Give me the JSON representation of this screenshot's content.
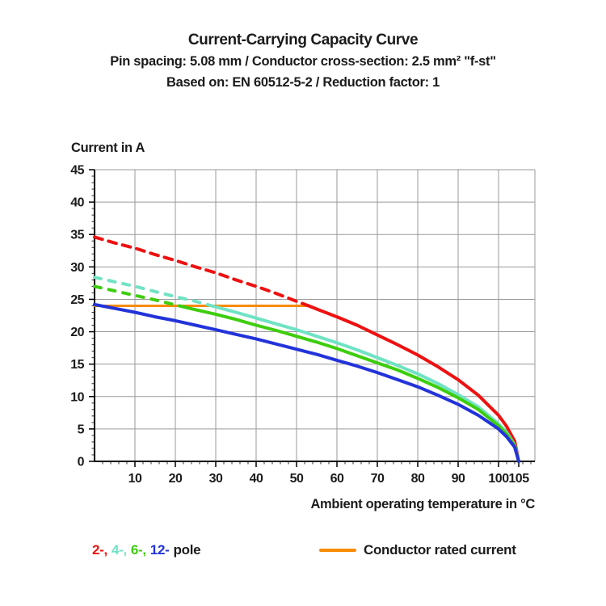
{
  "chart_data": {
    "type": "line",
    "title": "Current-Carrying Capacity Curve",
    "subtitle1": "Pin spacing: 5.08 mm / Conductor cross-section: 2.5 mm² \"f-st\"",
    "subtitle2": "Based on: EN 60512-5-2 / Reduction factor: 1",
    "ylabel": "Current in A",
    "xlabel": "Ambient operating temperature in °C",
    "xlim": [
      0,
      109
    ],
    "ylim": [
      0,
      45
    ],
    "xticks": [
      10,
      20,
      30,
      40,
      50,
      60,
      70,
      80,
      90,
      100,
      105
    ],
    "yticks": [
      0,
      5,
      10,
      15,
      20,
      25,
      30,
      35,
      40,
      45
    ],
    "grid": true,
    "grid_color": "#9a9a9a",
    "axis_color": "#000000",
    "text_color": "#1b1b1b",
    "legend_position": "bottom",
    "series": [
      {
        "name": "conductor-rated-current",
        "label": "Conductor rated current",
        "color": "#f78b00",
        "width": 3,
        "solid_points": [
          [
            0,
            24
          ],
          [
            53,
            24
          ]
        ]
      },
      {
        "name": "2-pole",
        "label": "2-",
        "color": "#ee1111",
        "width": 4,
        "dash": "10 8",
        "dashed_points": [
          [
            0,
            34.6
          ],
          [
            5,
            33.7
          ],
          [
            10,
            32.9
          ],
          [
            15,
            31.9
          ],
          [
            20,
            31.0
          ],
          [
            25,
            30.0
          ],
          [
            30,
            29.1
          ],
          [
            35,
            28.0
          ],
          [
            40,
            27.0
          ],
          [
            45,
            25.9
          ],
          [
            50,
            24.7
          ],
          [
            53,
            24.0
          ]
        ],
        "solid_points": [
          [
            53,
            24.0
          ],
          [
            55,
            23.5
          ],
          [
            60,
            22.3
          ],
          [
            65,
            21.0
          ],
          [
            70,
            19.5
          ],
          [
            75,
            18.0
          ],
          [
            80,
            16.4
          ],
          [
            85,
            14.6
          ],
          [
            90,
            12.6
          ],
          [
            95,
            10.2
          ],
          [
            100,
            7.1
          ],
          [
            102,
            5.4
          ],
          [
            104,
            3.1
          ],
          [
            105,
            0
          ]
        ]
      },
      {
        "name": "4-pole",
        "label": "4-",
        "color": "#6fe3c4",
        "width": 4,
        "dash": "8 10",
        "dashed_points": [
          [
            0,
            28.4
          ],
          [
            5,
            27.7
          ],
          [
            10,
            27.0
          ],
          [
            15,
            26.2
          ],
          [
            20,
            25.4
          ],
          [
            25,
            24.7
          ],
          [
            29,
            24.0
          ]
        ],
        "solid_points": [
          [
            29,
            24.0
          ],
          [
            35,
            23.0
          ],
          [
            40,
            22.1
          ],
          [
            45,
            21.2
          ],
          [
            50,
            20.3
          ],
          [
            55,
            19.3
          ],
          [
            60,
            18.3
          ],
          [
            65,
            17.2
          ],
          [
            70,
            16.0
          ],
          [
            75,
            14.8
          ],
          [
            80,
            13.5
          ],
          [
            85,
            12.0
          ],
          [
            90,
            10.3
          ],
          [
            95,
            8.4
          ],
          [
            100,
            5.8
          ],
          [
            102,
            4.5
          ],
          [
            104,
            2.5
          ],
          [
            105,
            0
          ]
        ]
      },
      {
        "name": "6-pole",
        "label": "6-",
        "color": "#3ecd0e",
        "width": 4,
        "dash": "8 10",
        "dashed_points": [
          [
            0,
            27.0
          ],
          [
            5,
            26.3
          ],
          [
            10,
            25.6
          ],
          [
            15,
            24.9
          ],
          [
            21,
            24.0
          ]
        ],
        "solid_points": [
          [
            21,
            24.0
          ],
          [
            25,
            23.4
          ],
          [
            30,
            22.7
          ],
          [
            35,
            21.9
          ],
          [
            40,
            21.0
          ],
          [
            45,
            20.2
          ],
          [
            50,
            19.3
          ],
          [
            55,
            18.4
          ],
          [
            60,
            17.4
          ],
          [
            65,
            16.3
          ],
          [
            70,
            15.2
          ],
          [
            75,
            14.1
          ],
          [
            80,
            12.8
          ],
          [
            85,
            11.4
          ],
          [
            90,
            9.8
          ],
          [
            95,
            8.0
          ],
          [
            100,
            5.5
          ],
          [
            102,
            4.2
          ],
          [
            104,
            2.4
          ],
          [
            105,
            0
          ]
        ]
      },
      {
        "name": "12-pole",
        "label": "12-",
        "color": "#2233d9",
        "width": 4,
        "solid_points": [
          [
            0,
            24.2
          ],
          [
            5,
            23.6
          ],
          [
            10,
            23.0
          ],
          [
            15,
            22.3
          ],
          [
            20,
            21.7
          ],
          [
            25,
            21.0
          ],
          [
            30,
            20.3
          ],
          [
            35,
            19.6
          ],
          [
            40,
            18.9
          ],
          [
            45,
            18.1
          ],
          [
            50,
            17.3
          ],
          [
            55,
            16.5
          ],
          [
            60,
            15.6
          ],
          [
            65,
            14.7
          ],
          [
            70,
            13.7
          ],
          [
            75,
            12.6
          ],
          [
            80,
            11.5
          ],
          [
            85,
            10.2
          ],
          [
            90,
            8.8
          ],
          [
            95,
            7.1
          ],
          [
            100,
            5.0
          ],
          [
            102,
            3.8
          ],
          [
            104,
            2.2
          ],
          [
            105,
            0
          ]
        ]
      }
    ],
    "legend": {
      "pole_items": [
        {
          "label": "2-,",
          "color": "#ee1111",
          "series": "2-pole"
        },
        {
          "label": "4-,",
          "color": "#6fe3c4",
          "series": "4-pole"
        },
        {
          "label": "6-,",
          "color": "#3ecd0e",
          "series": "6-pole"
        },
        {
          "label": "12-",
          "color": "#2233d9",
          "series": "12-pole"
        }
      ],
      "pole_suffix": "pole",
      "rated_label": "Conductor rated current",
      "rated_color": "#f78b00"
    }
  }
}
